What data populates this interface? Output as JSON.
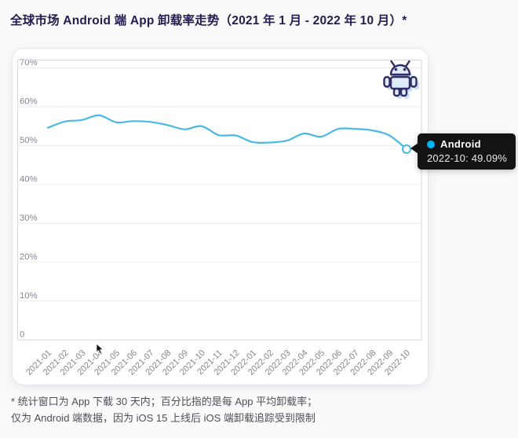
{
  "page": {
    "title": "全球市场 Android 端 App 卸载率走势（2021 年 1 月 - 2022 年 10 月）*"
  },
  "tooltip": {
    "series": "Android",
    "value_text": "2022-10: 49.09%",
    "dot_color": "#00b2f3",
    "bg_color": "#131313"
  },
  "footnote": {
    "line1": "* 统计窗口为 App 下载 30 天内；百分比指的是每 App 平均卸载率；",
    "line2": "仅为 Android 端数据，因为 iOS 15 上线后 iOS 端卸载追踪受到限制"
  },
  "icons": {
    "android_robot": "android-robot-icon",
    "cursor": "mouse-cursor-icon"
  },
  "colors": {
    "title_text": "#241c50",
    "axis_label": "#85858d",
    "gridline": "#ececef",
    "plot_border": "#d7d7dd",
    "line": "#47b9e8",
    "marker_fill": "#ffffff",
    "robot_outline": "#322b66",
    "robot_fill": "#dcecfb",
    "robot_shadow": "#c7e0f6",
    "footnote_text": "#4e4e58"
  },
  "chart_data": {
    "type": "line",
    "title": "全球市场 Android 端 App 卸载率走势（2021 年 1 月 - 2022 年 10 月）",
    "series_name": "Android",
    "categories": [
      "2021-01",
      "2021-02",
      "2021-03",
      "2021-04",
      "2021-05",
      "2021-06",
      "2021-07",
      "2021-08",
      "2021-09",
      "2021-10",
      "2021-11",
      "2021-12",
      "2022-01",
      "2022-02",
      "2022-03",
      "2022-04",
      "2022-05",
      "2022-06",
      "2022-07",
      "2022-08",
      "2022-09",
      "2022-10"
    ],
    "values": [
      54.6,
      56.2,
      56.6,
      57.8,
      56.0,
      56.3,
      56.1,
      55.3,
      54.2,
      55.0,
      52.7,
      52.6,
      50.9,
      50.8,
      51.3,
      53.1,
      52.3,
      54.3,
      54.3,
      53.9,
      52.6,
      49.09
    ],
    "unit": "%",
    "xlabel": "",
    "ylabel": "",
    "ylim": [
      0,
      72
    ],
    "ytick_values": [
      0,
      10,
      20,
      30,
      40,
      50,
      60,
      70
    ],
    "ytick_labels": [
      "0",
      "10%",
      "20%",
      "30%",
      "40%",
      "50%",
      "60%",
      "70%"
    ],
    "grid": true,
    "smooth": true,
    "legend_position": "none",
    "highlight": {
      "category": "2022-10",
      "value": 49.09,
      "label": "2022-10: 49.09%"
    }
  }
}
